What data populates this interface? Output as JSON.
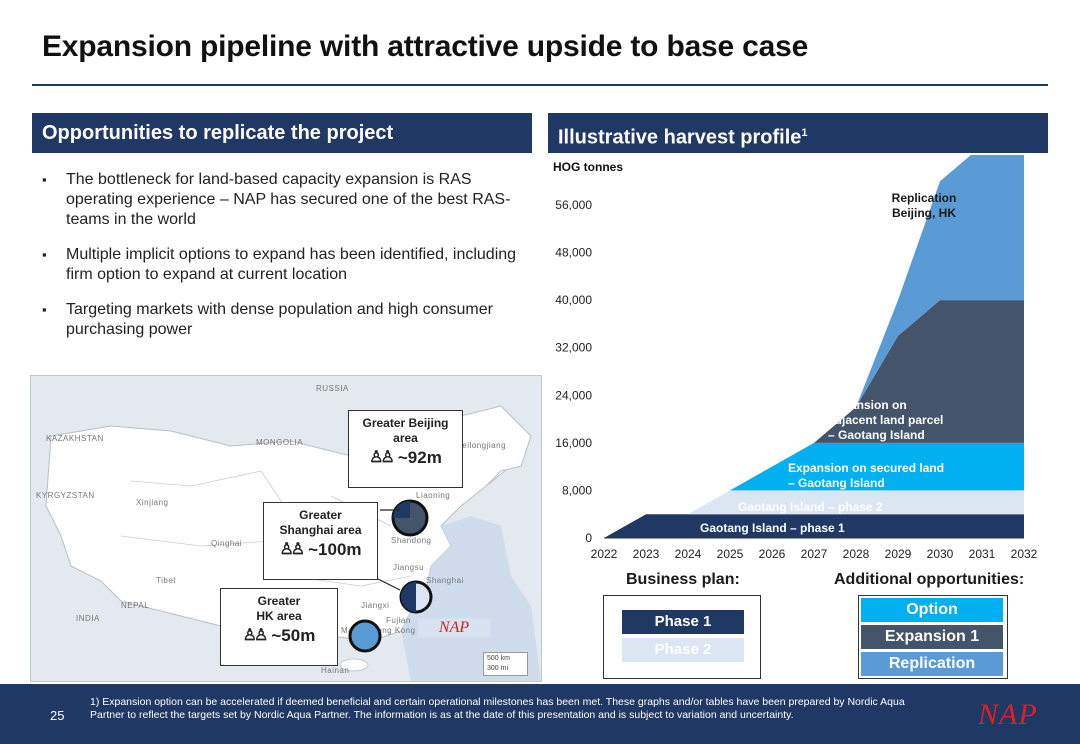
{
  "page": {
    "title": "Expansion pipeline with attractive upside to base case",
    "page_number": "25"
  },
  "left": {
    "heading": "Opportunities to replicate the project",
    "bullets": [
      "The bottleneck for land-based capacity expansion is RAS operating experience – NAP has secured one of the best RAS-teams in the world",
      "Multiple implicit options to expand has been identified, including firm option to expand at current location",
      "Targeting markets with dense population and high consumer purchasing power"
    ]
  },
  "map": {
    "country_labels": [
      "RUSSIA",
      "KAZAKHSTAN",
      "MONGOLIA",
      "KYRGYZSTAN",
      "INDIA",
      "NEPAL"
    ],
    "region_labels": [
      "Xinjiang",
      "Qinghai",
      "Tibet",
      "Heilongjiang",
      "Liaoning",
      "Shandong",
      "Jiangsu",
      "Shanghai",
      "Jiangxi",
      "Hainan",
      "Macau",
      "Hong Kong",
      "Fujian"
    ],
    "callouts": [
      {
        "title": "Greater Beijing area",
        "population": "~92m"
      },
      {
        "title": "Greater Shanghai area",
        "population": "~100m"
      },
      {
        "title": "Greater HK area",
        "population": "~50m"
      }
    ],
    "nap_label": "NAP",
    "scale_km": "500 km",
    "scale_mi": "300 mi"
  },
  "chart_data": {
    "type": "area",
    "title": "Illustrative harvest profile",
    "title_footnote": "1",
    "ylabel": "HOG tonnes",
    "xlabel": "",
    "categories": [
      "2022",
      "2023",
      "2024",
      "2025",
      "2026",
      "2027",
      "2028",
      "2029",
      "2030",
      "2031",
      "2032"
    ],
    "ylim": [
      0,
      56000
    ],
    "yticks": [
      0,
      8000,
      16000,
      24000,
      32000,
      40000,
      48000,
      56000
    ],
    "ytick_labels": [
      "0",
      "8,000",
      "16,000",
      "24,000",
      "32,000",
      "40,000",
      "48,000",
      "56,000"
    ],
    "series": [
      {
        "name": "Gaotang Island – phase 1",
        "values": [
          0,
          4000,
          4000,
          4000,
          4000,
          4000,
          4000,
          4000,
          4000,
          4000,
          4000
        ],
        "color": "#1f3864"
      },
      {
        "name": "Gaotang Island – phase 2",
        "values": [
          0,
          0,
          0,
          4000,
          4000,
          4000,
          4000,
          4000,
          4000,
          4000,
          4000
        ],
        "color": "#dce6f2"
      },
      {
        "name": "Expansion on secured land – Gaotang Island",
        "values": [
          0,
          0,
          0,
          0,
          4000,
          8000,
          8000,
          8000,
          8000,
          8000,
          8000
        ],
        "color": "#00b0f0"
      },
      {
        "name": "Expansion on adjacent land parcel – Gaotang Island",
        "values": [
          0,
          0,
          0,
          0,
          0,
          0,
          6000,
          18000,
          24000,
          24000,
          24000
        ],
        "color": "#44546a"
      },
      {
        "name": "Replication Beijing, HK",
        "values": [
          0,
          0,
          0,
          0,
          0,
          0,
          0,
          6000,
          20000,
          26000,
          32000
        ],
        "color": "#5b9bd5"
      }
    ],
    "annotations": [
      "Replication Beijing, HK",
      "Expansion on adjacent land parcel – Gaotang Island",
      "Expansion on secured land – Gaotang Island",
      "Gaotang Island – phase 2",
      "Gaotang Island – phase 1"
    ],
    "grid": false,
    "legend": "bottom"
  },
  "legend": {
    "business_plan_title": "Business plan:",
    "business_plan_items": [
      {
        "label": "Phase 1",
        "color": "#1f3864"
      },
      {
        "label": "Phase 2",
        "color": "#dce6f2"
      }
    ],
    "additional_title": "Additional opportunities:",
    "additional_items": [
      {
        "label": "Option",
        "color": "#00b0f0"
      },
      {
        "label": "Expansion 1",
        "color": "#44546a"
      },
      {
        "label": "Replication",
        "color": "#5b9bd5"
      }
    ]
  },
  "footer": {
    "footnote": "1) Expansion option can be accelerated if deemed beneficial and certain operational milestones has been met. These graphs and/or tables have been prepared by Nordic Aqua Partner to reflect the targets set by Nordic Aqua Partner. The information is as at the date of this presentation and is subject to variation and uncertainty.",
    "logo_text": "NAP"
  },
  "colors": {
    "navy": "#1f3864",
    "accent_red": "#e02020"
  }
}
